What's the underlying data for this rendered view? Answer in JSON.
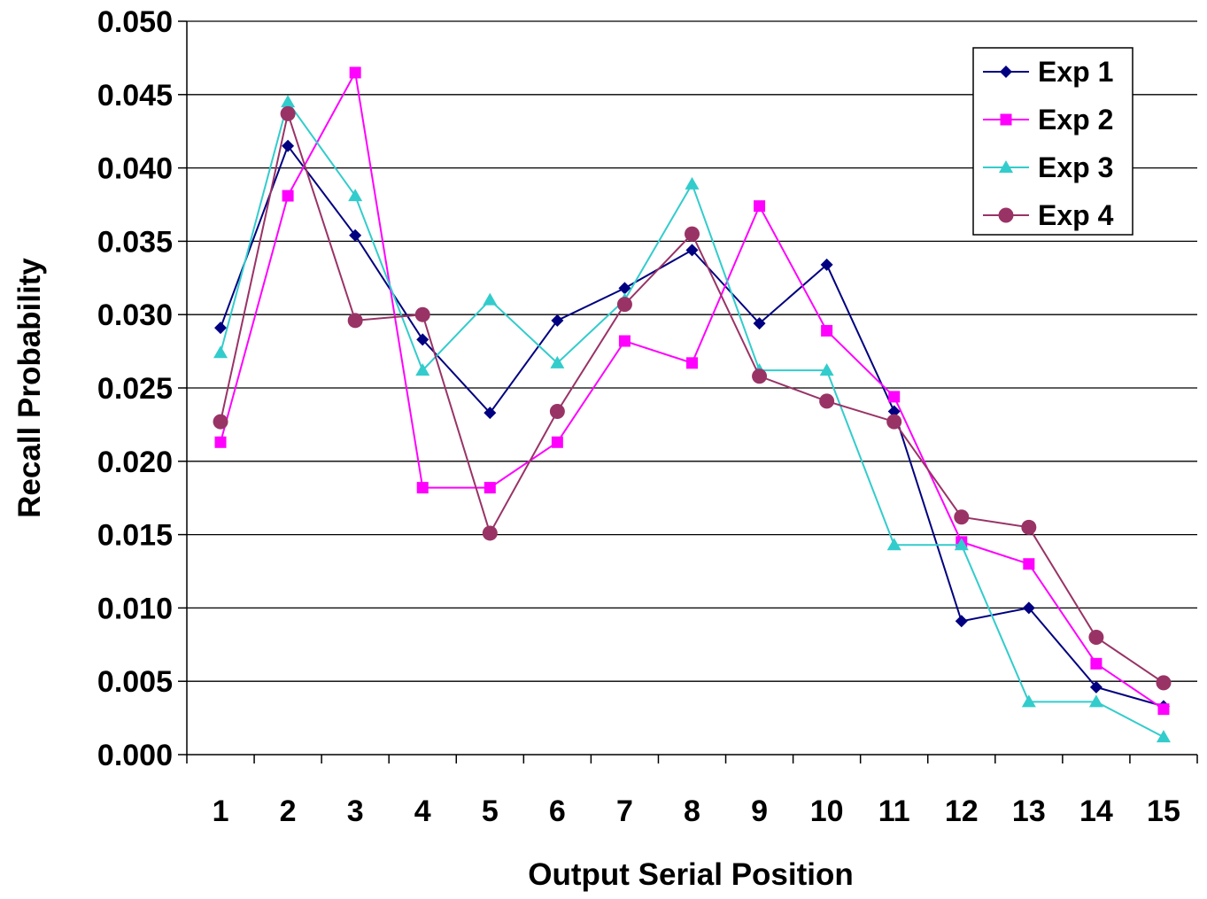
{
  "chart_data": {
    "type": "line",
    "title": "",
    "xlabel": "Output Serial Position",
    "ylabel": "Recall Probability",
    "categories": [
      "1",
      "2",
      "3",
      "4",
      "5",
      "6",
      "7",
      "8",
      "9",
      "10",
      "11",
      "12",
      "13",
      "14",
      "15"
    ],
    "ylim": [
      0,
      0.05
    ],
    "yticks": [
      "0.000",
      "0.005",
      "0.010",
      "0.015",
      "0.020",
      "0.025",
      "0.030",
      "0.035",
      "0.040",
      "0.045",
      "0.050"
    ],
    "grid": "horizontal",
    "legend_position": "top-right",
    "series": [
      {
        "name": "Exp 1",
        "color": "#000080",
        "marker": "diamond",
        "values": [
          0.0291,
          0.0415,
          0.0354,
          0.0283,
          0.0233,
          0.0296,
          0.0318,
          0.0344,
          0.0294,
          0.0334,
          0.0234,
          0.0091,
          0.01,
          0.0046,
          0.0033
        ]
      },
      {
        "name": "Exp 2",
        "color": "#FF00FF",
        "marker": "square",
        "values": [
          0.0213,
          0.0381,
          0.0465,
          0.0182,
          0.0182,
          0.0213,
          0.0282,
          0.0267,
          0.0374,
          0.0289,
          0.0244,
          0.0145,
          0.013,
          0.0062,
          0.0031
        ]
      },
      {
        "name": "Exp 3",
        "color": "#33CCCC",
        "marker": "triangle",
        "values": [
          0.0274,
          0.0445,
          0.0381,
          0.0262,
          0.031,
          0.0267,
          0.031,
          0.0389,
          0.0262,
          0.0262,
          0.0143,
          0.0143,
          0.0036,
          0.0036,
          0.0012
        ]
      },
      {
        "name": "Exp 4",
        "color": "#993366",
        "marker": "circle",
        "values": [
          0.0227,
          0.0437,
          0.0296,
          0.03,
          0.0151,
          0.0234,
          0.0307,
          0.0355,
          0.0258,
          0.0241,
          0.0227,
          0.0162,
          0.0155,
          0.008,
          0.0049
        ]
      }
    ]
  }
}
